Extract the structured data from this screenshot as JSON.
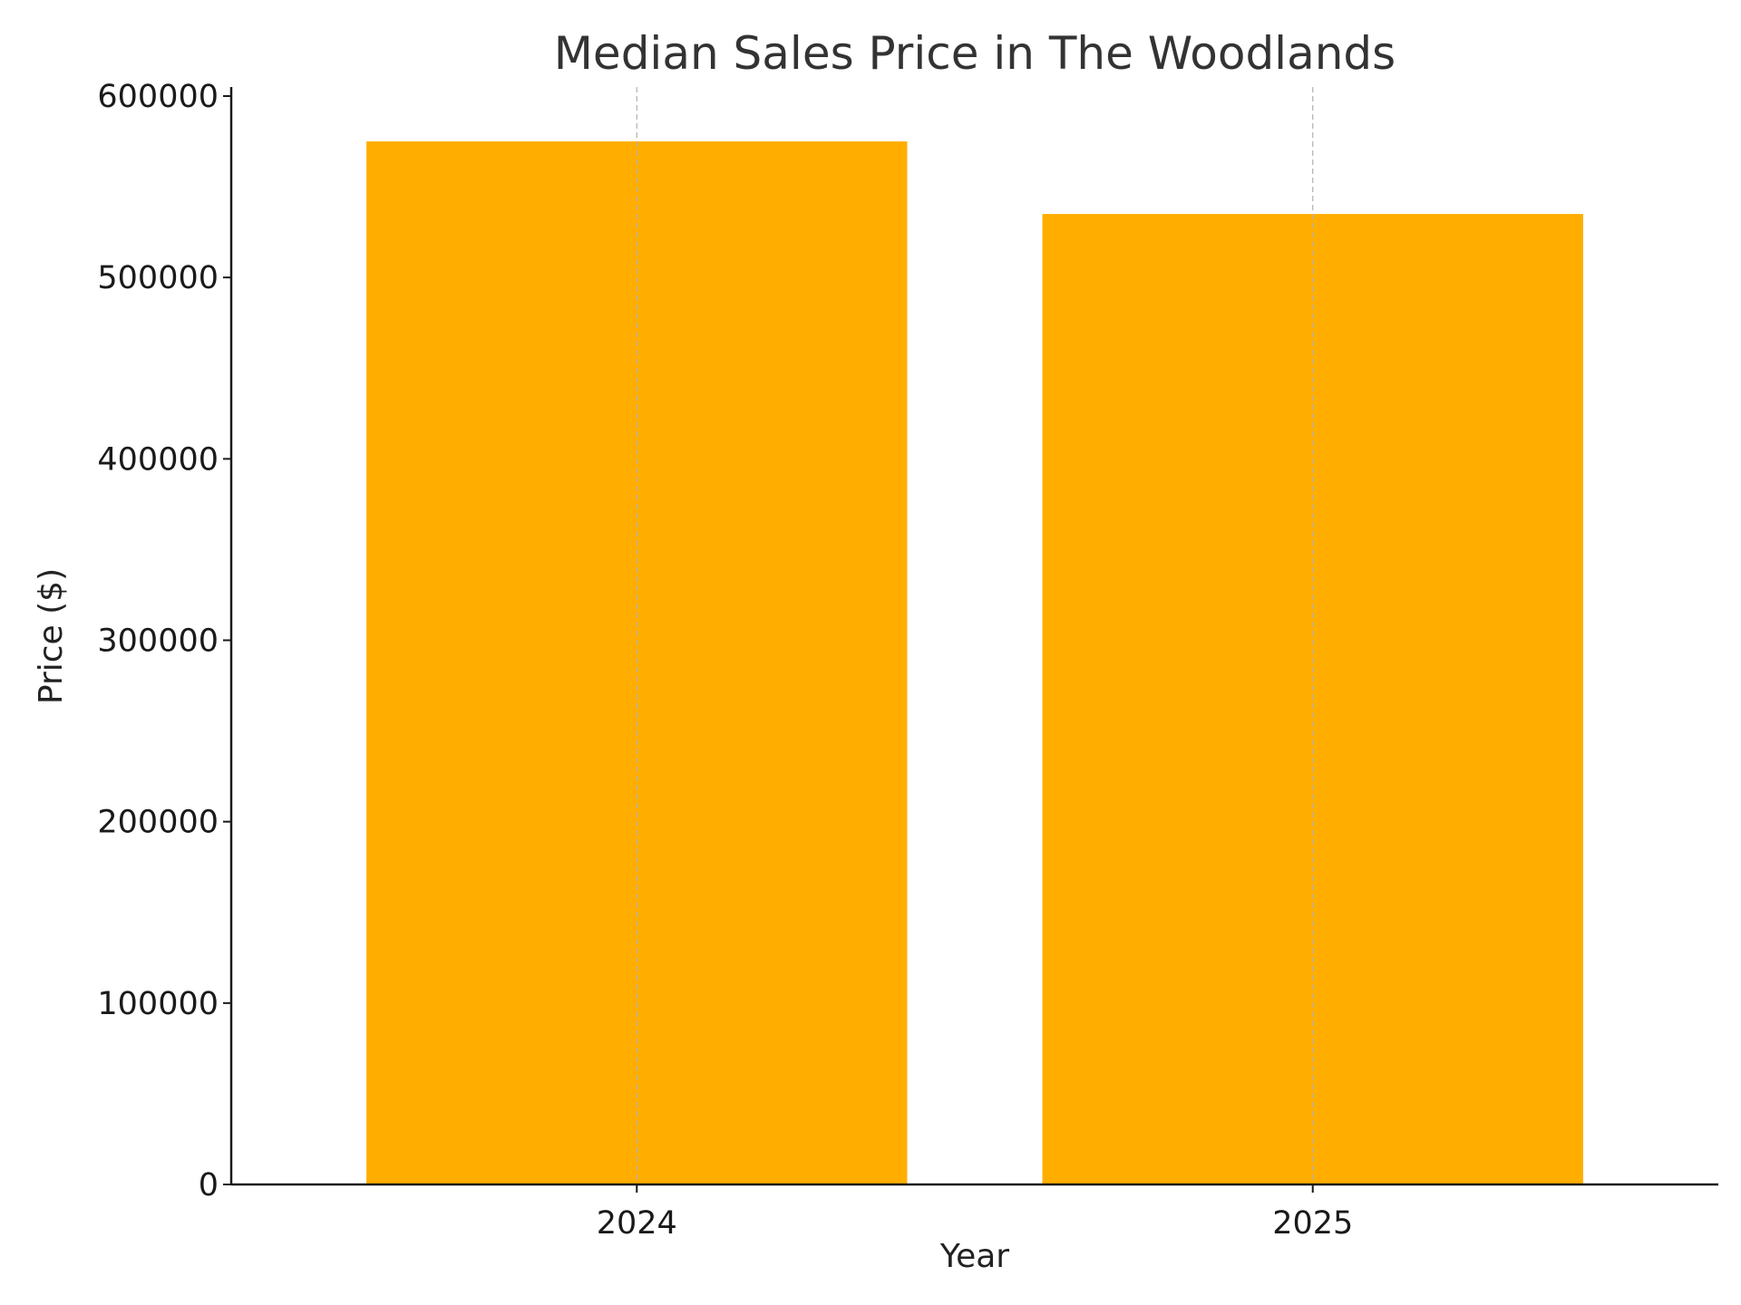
{
  "chart_data": {
    "type": "bar",
    "title": "Median Sales Price in The Woodlands",
    "xlabel": "Year",
    "ylabel": "Price ($)",
    "categories": [
      "2024",
      "2025"
    ],
    "values": [
      575000,
      535000
    ],
    "ylim": [
      0,
      600000
    ],
    "yticks": [
      0,
      100000,
      200000,
      300000,
      400000,
      500000,
      600000
    ],
    "ytick_labels": [
      "0",
      "100000",
      "200000",
      "300000",
      "400000",
      "500000",
      "600000"
    ],
    "grid": "vertical-dashed",
    "legend": "none",
    "bar_color": "#FFAE00",
    "grid_color": "#B0B0B0"
  }
}
